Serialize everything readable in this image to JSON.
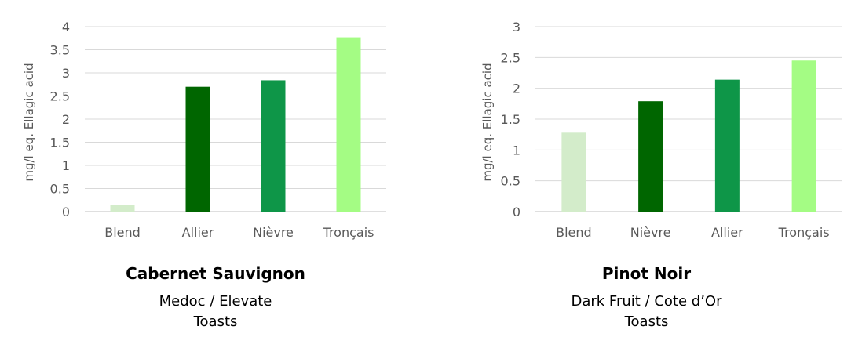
{
  "chart_data": [
    {
      "type": "bar",
      "ylabel": "mg/l eq. Ellagic acid",
      "xlabel": "",
      "ylim": [
        0,
        4
      ],
      "yticks": [
        "0",
        "0.5",
        "1",
        "1.5",
        "2",
        "2.5",
        "3",
        "3.5",
        "4"
      ],
      "grid": true,
      "categories": [
        "Blend",
        "Allier",
        "Nièvre",
        "Tronçais"
      ],
      "values": [
        0.15,
        2.7,
        2.84,
        3.77
      ],
      "colors": [
        "#d3ecca",
        "#006600",
        "#0e9648",
        "#a4fc84"
      ],
      "caption_title": "Cabernet Sauvignon",
      "caption_lines": [
        "Medoc / Elevate",
        "Toasts"
      ]
    },
    {
      "type": "bar",
      "ylabel": "mg/l eq. Ellagic acid",
      "xlabel": "",
      "ylim": [
        0,
        3
      ],
      "yticks": [
        "0",
        "0.5",
        "1",
        "1.5",
        "2",
        "2.5",
        "3"
      ],
      "grid": true,
      "categories": [
        "Blend",
        "Nièvre",
        "Allier",
        "Tronçais"
      ],
      "values": [
        1.28,
        1.79,
        2.14,
        2.45
      ],
      "colors": [
        "#d3ecca",
        "#006600",
        "#0e9648",
        "#a4fc84"
      ],
      "caption_title": "Pinot Noir",
      "caption_lines": [
        "Dark Fruit / Cote d’Or",
        "Toasts"
      ]
    }
  ]
}
